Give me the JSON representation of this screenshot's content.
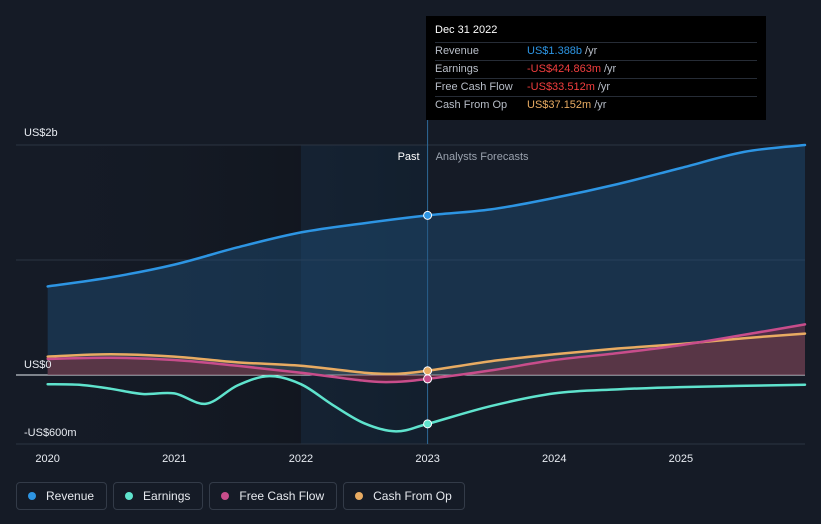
{
  "colors": {
    "revenue": "#2d95e3",
    "earnings": "#5fe3cd",
    "free_cash_flow": "#c84d8b",
    "cash_from_op": "#e8ab62",
    "background": "#151b26"
  },
  "tooltip": {
    "date": "Dec 31 2022",
    "rows": [
      {
        "label": "Revenue",
        "value": "US$1.388b",
        "unit": "/yr",
        "color": "#2d95e3"
      },
      {
        "label": "Earnings",
        "value": "-US$424.863m",
        "unit": "/yr",
        "color": "#f23e3e"
      },
      {
        "label": "Free Cash Flow",
        "value": "-US$33.512m",
        "unit": "/yr",
        "color": "#f23e3e"
      },
      {
        "label": "Cash From Op",
        "value": "US$37.152m",
        "unit": "/yr",
        "color": "#e8ab62"
      }
    ]
  },
  "section_labels": {
    "past": "Past",
    "forecast": "Analysts Forecasts"
  },
  "legend": [
    {
      "label": "Revenue",
      "color": "#2d95e3"
    },
    {
      "label": "Earnings",
      "color": "#5fe3cd"
    },
    {
      "label": "Free Cash Flow",
      "color": "#c84d8b"
    },
    {
      "label": "Cash From Op",
      "color": "#e8ab62"
    }
  ],
  "chart_data": {
    "type": "line",
    "x_unit": "year",
    "xlim": [
      2019.75,
      2025.98
    ],
    "ylim": [
      -600,
      2000
    ],
    "y_unit": "US$m",
    "y_tick_labels": [
      {
        "value": 2000,
        "label": "US$2b"
      },
      {
        "value": 0,
        "label": "US$0"
      },
      {
        "value": -600,
        "label": "-US$600m"
      }
    ],
    "x_ticks": [
      {
        "value": 2020,
        "label": "2020"
      },
      {
        "value": 2021,
        "label": "2021"
      },
      {
        "value": 2022,
        "label": "2022"
      },
      {
        "value": 2023,
        "label": "2023"
      },
      {
        "value": 2024,
        "label": "2024"
      },
      {
        "value": 2025,
        "label": "2025"
      }
    ],
    "past_forecast_split": 2023.0,
    "series": [
      {
        "name": "Revenue",
        "key": "revenue",
        "fill": true,
        "points": [
          [
            2020.0,
            770
          ],
          [
            2020.5,
            850
          ],
          [
            2021.0,
            960
          ],
          [
            2021.5,
            1110
          ],
          [
            2022.0,
            1240
          ],
          [
            2022.5,
            1320
          ],
          [
            2023.0,
            1388
          ],
          [
            2023.5,
            1440
          ],
          [
            2024.0,
            1540
          ],
          [
            2024.5,
            1660
          ],
          [
            2025.0,
            1800
          ],
          [
            2025.5,
            1940
          ],
          [
            2025.98,
            2000
          ]
        ]
      },
      {
        "name": "Earnings",
        "key": "earnings",
        "fill": false,
        "points": [
          [
            2020.0,
            -80
          ],
          [
            2020.25,
            -85
          ],
          [
            2020.5,
            -120
          ],
          [
            2020.75,
            -165
          ],
          [
            2021.0,
            -160
          ],
          [
            2021.25,
            -250
          ],
          [
            2021.5,
            -90
          ],
          [
            2021.75,
            -10
          ],
          [
            2022.0,
            -80
          ],
          [
            2022.25,
            -260
          ],
          [
            2022.5,
            -420
          ],
          [
            2022.75,
            -490
          ],
          [
            2023.0,
            -425
          ],
          [
            2023.5,
            -270
          ],
          [
            2024.0,
            -160
          ],
          [
            2024.5,
            -125
          ],
          [
            2025.0,
            -105
          ],
          [
            2025.98,
            -85
          ]
        ]
      },
      {
        "name": "Free Cash Flow",
        "key": "free_cash_flow",
        "fill": true,
        "points": [
          [
            2020.0,
            140
          ],
          [
            2020.5,
            150
          ],
          [
            2021.0,
            130
          ],
          [
            2021.5,
            80
          ],
          [
            2022.0,
            20
          ],
          [
            2022.5,
            -50
          ],
          [
            2022.75,
            -60
          ],
          [
            2023.0,
            -34
          ],
          [
            2023.5,
            40
          ],
          [
            2024.0,
            130
          ],
          [
            2024.5,
            190
          ],
          [
            2025.0,
            260
          ],
          [
            2025.5,
            350
          ],
          [
            2025.98,
            440
          ]
        ]
      },
      {
        "name": "Cash From Op",
        "key": "cash_from_op",
        "fill": true,
        "points": [
          [
            2020.0,
            160
          ],
          [
            2020.5,
            180
          ],
          [
            2021.0,
            160
          ],
          [
            2021.5,
            110
          ],
          [
            2022.0,
            80
          ],
          [
            2022.5,
            20
          ],
          [
            2022.75,
            10
          ],
          [
            2023.0,
            37
          ],
          [
            2023.5,
            120
          ],
          [
            2024.0,
            180
          ],
          [
            2024.5,
            230
          ],
          [
            2025.0,
            270
          ],
          [
            2025.5,
            320
          ],
          [
            2025.98,
            360
          ]
        ]
      }
    ]
  }
}
